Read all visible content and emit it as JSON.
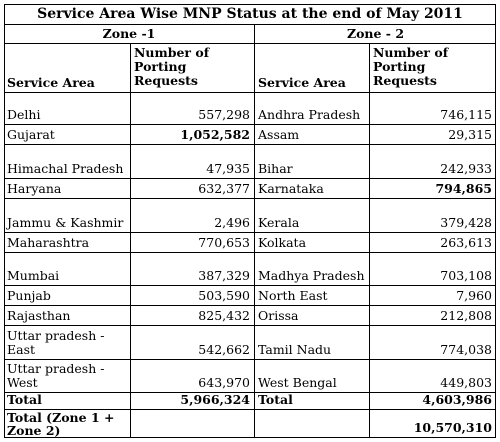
{
  "title": "Service Area Wise MNP Status at the end of May 2011",
  "zone1": {
    "label": "Zone -1",
    "col_area": "Service Area",
    "col_requests": "Number of Porting Requests",
    "rows": [
      {
        "area": "Delhi",
        "requests": "557,298"
      },
      {
        "area": "Gujarat",
        "requests": "1,052,582"
      },
      {
        "area": "Himachal Pradesh",
        "requests": "47,935"
      },
      {
        "area": "Haryana",
        "requests": "632,377"
      },
      {
        "area": "Jammu & Kashmir",
        "requests": "2,496"
      },
      {
        "area": "Maharashtra",
        "requests": "770,653"
      },
      {
        "area": "Mumbai",
        "requests": "387,329"
      },
      {
        "area": "Punjab",
        "requests": "503,590"
      },
      {
        "area": "Rajasthan",
        "requests": "825,432"
      },
      {
        "area": "Uttar pradesh - East",
        "requests": "542,662"
      },
      {
        "area": "Uttar pradesh - West",
        "requests": "643,970"
      }
    ],
    "total_label": "Total",
    "total_value": "5,966,324"
  },
  "zone2": {
    "label": "Zone - 2",
    "col_area": "Service Area",
    "col_requests": "Number of Porting Requests",
    "rows": [
      {
        "area": "Andhra Pradesh",
        "requests": "746,115"
      },
      {
        "area": "Assam",
        "requests": "29,315"
      },
      {
        "area": "Bihar",
        "requests": "242,933"
      },
      {
        "area": "Karnataka",
        "requests": "794,865"
      },
      {
        "area": "Kerala",
        "requests": "379,428"
      },
      {
        "area": "Kolkata",
        "requests": "263,613"
      },
      {
        "area": "Madhya Pradesh",
        "requests": "703,108"
      },
      {
        "area": "North East",
        "requests": "7,960"
      },
      {
        "area": "Orissa",
        "requests": "212,808"
      },
      {
        "area": "Tamil Nadu",
        "requests": "774,038"
      },
      {
        "area": "West Bengal",
        "requests": "449,803"
      }
    ],
    "total_label": "Total",
    "total_value": "4,603,986"
  },
  "grand_total": {
    "label": "Total (Zone 1 + Zone 2)",
    "value": "10,570,310"
  }
}
